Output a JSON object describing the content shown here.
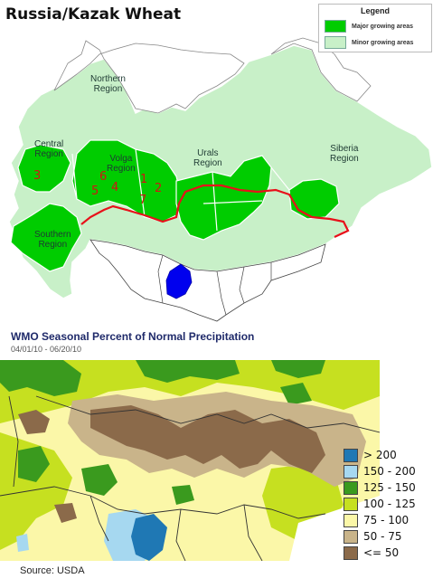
{
  "title": "Russia/Kazak Wheat",
  "legend": {
    "title": "Legend",
    "items": [
      {
        "label": "Major growing areas",
        "color": "#00cc00"
      },
      {
        "label": "Minor growing areas",
        "color": "#c8f0c8"
      }
    ]
  },
  "regions": {
    "northern": [
      "Northern",
      "Region"
    ],
    "central": [
      "Central",
      "Region"
    ],
    "volga": [
      "Volga",
      "Region"
    ],
    "urals": [
      "Urals",
      "Region"
    ],
    "siberia": [
      "Siberia",
      "Region"
    ],
    "southern": [
      "Southern",
      "Region"
    ]
  },
  "district_numbers": [
    "1",
    "2",
    "3",
    "4",
    "5",
    "6",
    "7"
  ],
  "precip": {
    "title": "WMO Seasonal Percent of Normal Precipitation",
    "dates": "04/01/10 - 06/20/10",
    "legend": [
      {
        "label": "> 200",
        "color": "#1f78b4"
      },
      {
        "label": "150 - 200",
        "color": "#a6d8f0"
      },
      {
        "label": "125 - 150",
        "color": "#3a9a1e"
      },
      {
        "label": "100 - 125",
        "color": "#c6e020"
      },
      {
        "label": "75 - 100",
        "color": "#fbf7a8"
      },
      {
        "label": "50 - 75",
        "color": "#c9b48a"
      },
      {
        "label": "<= 50",
        "color": "#8b6a4a"
      }
    ]
  },
  "source": "Source: USDA"
}
